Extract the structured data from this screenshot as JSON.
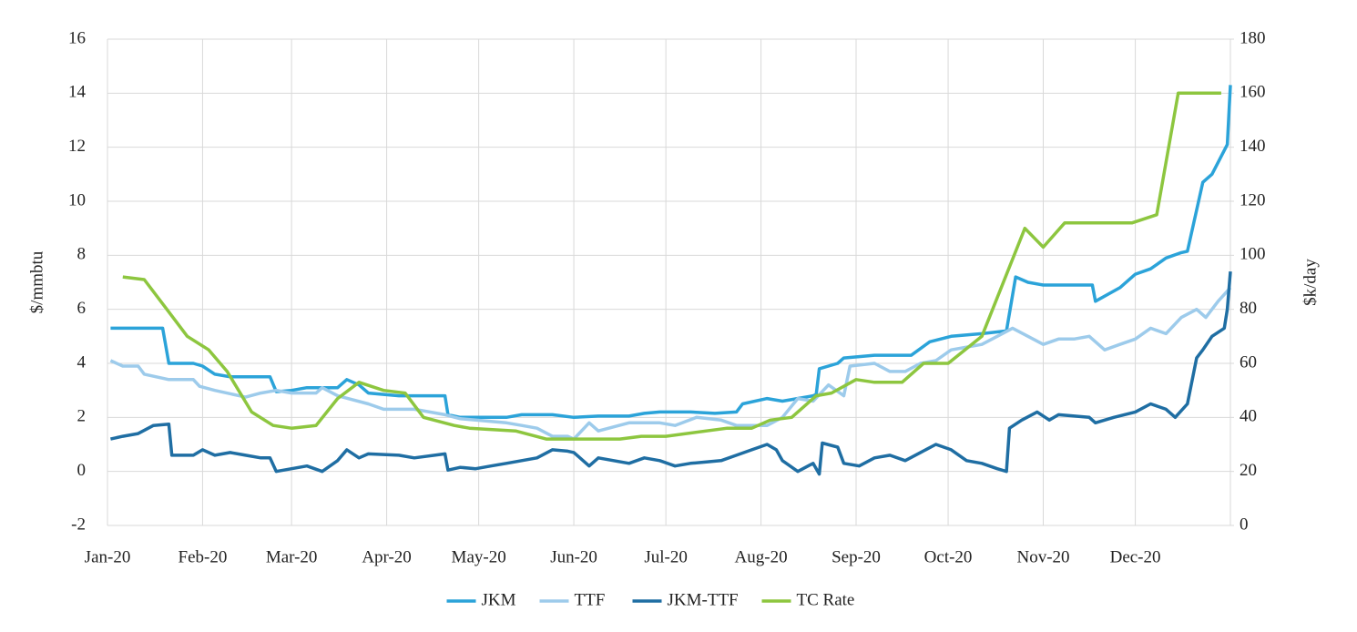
{
  "chart_data": {
    "type": "line",
    "y_label": "$/mmbtu",
    "y2_label": "$k/day",
    "xlim": [
      0,
      366
    ],
    "xticks": [
      {
        "value": 0,
        "label": "Jan-20"
      },
      {
        "value": 31,
        "label": "Feb-20"
      },
      {
        "value": 60,
        "label": "Mar-20"
      },
      {
        "value": 91,
        "label": "Apr-20"
      },
      {
        "value": 121,
        "label": "May-20"
      },
      {
        "value": 152,
        "label": "Jun-20"
      },
      {
        "value": 182,
        "label": "Jul-20"
      },
      {
        "value": 213,
        "label": "Aug-20"
      },
      {
        "value": 244,
        "label": "Sep-20"
      },
      {
        "value": 274,
        "label": "Oct-20"
      },
      {
        "value": 305,
        "label": "Nov-20"
      },
      {
        "value": 335,
        "label": "Dec-20"
      }
    ],
    "ylim": [
      -2,
      16
    ],
    "yticks": [
      -2,
      0,
      2,
      4,
      6,
      8,
      10,
      12,
      14,
      16
    ],
    "y2lim": [
      0,
      180
    ],
    "y2ticks": [
      0,
      20,
      40,
      60,
      80,
      100,
      120,
      140,
      160,
      180
    ],
    "grid": true,
    "legend": "bottom",
    "series": [
      {
        "name": "JKM",
        "color": "#2ba3d9",
        "x": [
          1,
          18,
          20,
          28,
          31,
          35,
          40,
          50,
          53,
          55,
          60,
          65,
          75,
          78,
          82,
          85,
          95,
          110,
          111,
          115,
          130,
          135,
          145,
          152,
          160,
          170,
          175,
          180,
          190,
          198,
          205,
          207,
          215,
          220,
          230,
          231,
          232,
          238,
          240,
          250,
          262,
          268,
          275,
          285,
          293,
          296,
          300,
          305,
          315,
          321,
          322,
          330,
          335,
          340,
          345,
          350,
          352,
          357,
          360,
          365,
          366
        ],
        "values": [
          5.3,
          5.3,
          4.0,
          4.0,
          3.9,
          3.6,
          3.5,
          3.5,
          3.5,
          2.95,
          3.0,
          3.1,
          3.1,
          3.4,
          3.2,
          2.9,
          2.8,
          2.8,
          2.1,
          2.0,
          2.0,
          2.1,
          2.1,
          2.0,
          2.05,
          2.05,
          2.15,
          2.2,
          2.2,
          2.15,
          2.2,
          2.5,
          2.7,
          2.6,
          2.8,
          2.85,
          3.8,
          4.0,
          4.2,
          4.3,
          4.3,
          4.8,
          5.0,
          5.1,
          5.2,
          7.2,
          7.0,
          6.9,
          6.9,
          6.9,
          6.3,
          6.8,
          7.3,
          7.5,
          7.9,
          8.1,
          8.15,
          10.7,
          11.0,
          12.1,
          14.3
        ]
      },
      {
        "name": "TTF",
        "color": "#9dcbeb",
        "x": [
          1,
          5,
          10,
          12,
          20,
          28,
          30,
          35,
          45,
          50,
          55,
          60,
          68,
          70,
          75,
          85,
          90,
          100,
          110,
          115,
          120,
          130,
          135,
          140,
          145,
          150,
          152,
          157,
          160,
          170,
          180,
          185,
          192,
          200,
          205,
          215,
          220,
          225,
          230,
          235,
          240,
          242,
          250,
          255,
          260,
          265,
          270,
          275,
          285,
          290,
          295,
          300,
          305,
          310,
          315,
          320,
          325,
          330,
          335,
          340,
          345,
          350,
          355,
          358,
          362,
          366
        ],
        "values": [
          4.1,
          3.9,
          3.9,
          3.6,
          3.4,
          3.4,
          3.15,
          3.0,
          2.75,
          2.9,
          3.0,
          2.9,
          2.9,
          3.1,
          2.8,
          2.5,
          2.3,
          2.3,
          2.1,
          1.95,
          1.9,
          1.8,
          1.7,
          1.6,
          1.3,
          1.3,
          1.2,
          1.8,
          1.5,
          1.8,
          1.8,
          1.7,
          2.0,
          1.9,
          1.7,
          1.7,
          2.0,
          2.7,
          2.6,
          3.2,
          2.8,
          3.9,
          4.0,
          3.7,
          3.7,
          4.0,
          4.1,
          4.5,
          4.7,
          5.0,
          5.3,
          5.0,
          4.7,
          4.9,
          4.9,
          5.0,
          4.5,
          4.7,
          4.9,
          5.3,
          5.1,
          5.7,
          6.0,
          5.7,
          6.3,
          6.8
        ]
      },
      {
        "name": "JKM-TTF",
        "color": "#1f6ea3",
        "x": [
          1,
          5,
          10,
          15,
          20,
          21,
          28,
          31,
          35,
          40,
          45,
          50,
          53,
          55,
          60,
          65,
          70,
          75,
          78,
          82,
          85,
          95,
          100,
          110,
          111,
          115,
          120,
          125,
          130,
          135,
          140,
          145,
          150,
          152,
          157,
          160,
          170,
          175,
          180,
          185,
          190,
          200,
          205,
          210,
          215,
          218,
          220,
          225,
          230,
          232,
          233,
          238,
          240,
          245,
          250,
          255,
          260,
          265,
          270,
          275,
          280,
          285,
          290,
          293,
          294,
          298,
          303,
          307,
          310,
          320,
          322,
          328,
          335,
          340,
          345,
          348,
          352,
          355,
          357,
          360,
          364,
          365,
          366
        ],
        "values": [
          1.2,
          1.3,
          1.4,
          1.7,
          1.75,
          0.6,
          0.6,
          0.8,
          0.6,
          0.7,
          0.6,
          0.5,
          0.5,
          0.0,
          0.1,
          0.2,
          0.0,
          0.4,
          0.8,
          0.5,
          0.65,
          0.6,
          0.5,
          0.65,
          0.05,
          0.15,
          0.1,
          0.2,
          0.3,
          0.4,
          0.5,
          0.8,
          0.75,
          0.7,
          0.2,
          0.5,
          0.3,
          0.5,
          0.4,
          0.2,
          0.3,
          0.4,
          0.6,
          0.8,
          1.0,
          0.8,
          0.4,
          0.0,
          0.3,
          -0.1,
          1.05,
          0.9,
          0.3,
          0.2,
          0.5,
          0.6,
          0.4,
          0.7,
          1.0,
          0.8,
          0.4,
          0.3,
          0.1,
          0.0,
          1.6,
          1.9,
          2.2,
          1.9,
          2.1,
          2.0,
          1.8,
          2.0,
          2.2,
          2.5,
          2.3,
          2.0,
          2.5,
          4.2,
          4.5,
          5.0,
          5.3,
          6.0,
          7.4
        ]
      },
      {
        "name": "TC Rate",
        "color": "#8dc63f",
        "axis": "y2",
        "x": [
          5,
          12,
          20,
          26,
          33,
          39,
          47,
          54,
          60,
          68,
          75,
          82,
          90,
          97,
          103,
          113,
          118,
          133,
          143,
          152,
          167,
          174,
          182,
          202,
          210,
          216,
          223,
          231,
          236,
          244,
          250,
          259,
          266,
          274,
          285,
          299,
          305,
          312,
          334,
          342,
          349,
          363
        ],
        "values": [
          92,
          91,
          79,
          70,
          65,
          57,
          42,
          37,
          36,
          37,
          47,
          53,
          50,
          49,
          40,
          37,
          36,
          35,
          32,
          32,
          32,
          33,
          33,
          36,
          36,
          39,
          40,
          48,
          49,
          54,
          53,
          53,
          60,
          60,
          70,
          110,
          103,
          112,
          112,
          115,
          160,
          160
        ]
      }
    ]
  }
}
